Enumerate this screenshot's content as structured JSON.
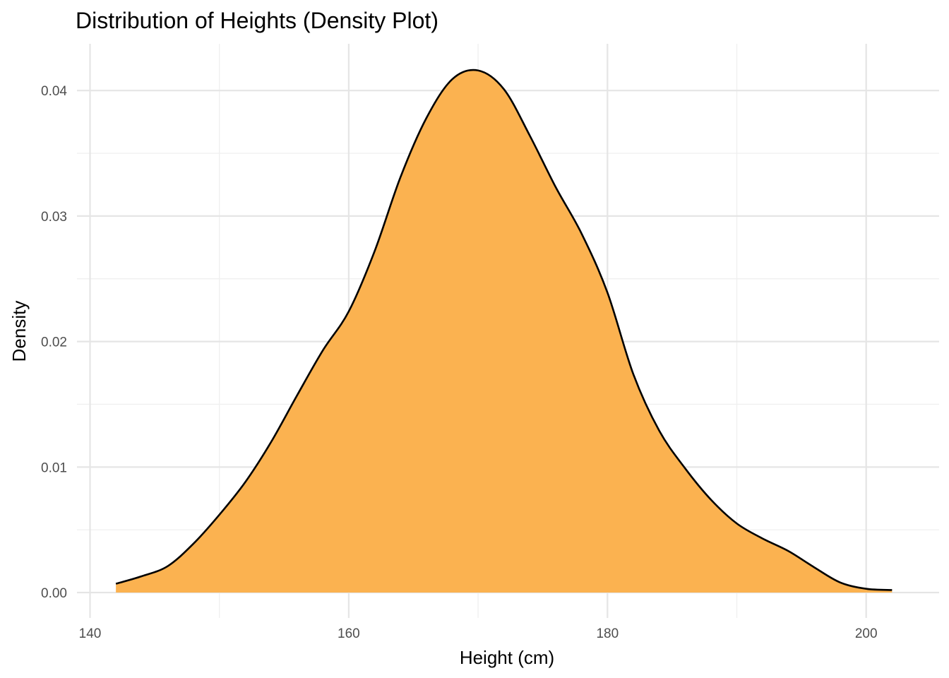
{
  "chart_data": {
    "type": "area",
    "title": "Distribution of Heights (Density Plot)",
    "xlabel": "Height (cm)",
    "ylabel": "Density",
    "xlim": [
      140,
      205
    ],
    "ylim": [
      0,
      0.043
    ],
    "x_ticks": [
      140,
      160,
      180,
      200
    ],
    "x_tick_labels": [
      "140",
      "160",
      "180",
      "200"
    ],
    "y_ticks": [
      0,
      0.01,
      0.02,
      0.03,
      0.04
    ],
    "y_tick_labels": [
      "0.00",
      "0.01",
      "0.02",
      "0.03",
      "0.04"
    ],
    "grid": true,
    "legend": "none",
    "fill_color": "#fbb250",
    "line_color": "#000000",
    "series": [
      {
        "x": [
          142,
          144,
          146,
          148,
          150,
          152,
          154,
          156,
          158,
          160,
          162,
          164,
          166,
          168,
          170,
          172,
          174,
          176,
          178,
          180,
          182,
          184,
          186,
          188,
          190,
          192,
          194,
          196,
          198,
          200,
          202
        ],
        "y": [
          0.0007,
          0.0013,
          0.0021,
          0.0039,
          0.0062,
          0.0088,
          0.012,
          0.0157,
          0.0193,
          0.0224,
          0.0272,
          0.0331,
          0.0378,
          0.0409,
          0.0416,
          0.0401,
          0.0364,
          0.0323,
          0.0286,
          0.0239,
          0.0174,
          0.0129,
          0.0099,
          0.0074,
          0.0055,
          0.0043,
          0.0033,
          0.002,
          0.0008,
          0.0003,
          0.0002
        ]
      }
    ]
  }
}
